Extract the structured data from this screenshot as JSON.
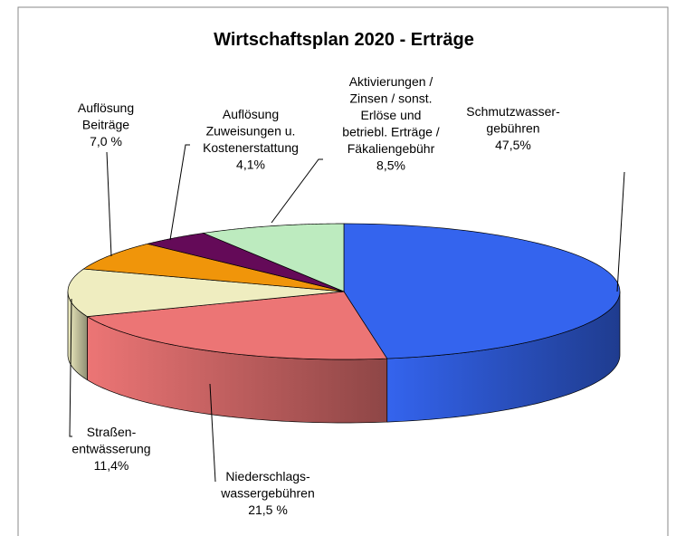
{
  "chart_data": {
    "type": "pie3d",
    "title": "Wirtschaftsplan 2020 - Erträge",
    "categories": [
      "Schmutzwasser-\ngebühren",
      "Niederschlags-\nwassergebühren",
      "Straßen-\nentwässerung",
      "Auflösung\nBeiträge",
      "Auflösung\nZuweisungen u.\nKostenerstattung",
      "Aktivierungen /\nZinsen / sonst.\nErlöse und\nbetriebl. Erträge /\nFäkaliengebühr"
    ],
    "values": [
      47.5,
      21.5,
      11.4,
      7.0,
      4.1,
      8.5
    ],
    "value_labels": [
      "47,5%",
      "21,5 %",
      "11,4%",
      "7,0 %",
      "4,1%",
      "8,5%"
    ],
    "colors": [
      "#3464ee",
      "#ec7575",
      "#efedc0",
      "#f0950a",
      "#640a58",
      "#bdebbf"
    ]
  }
}
